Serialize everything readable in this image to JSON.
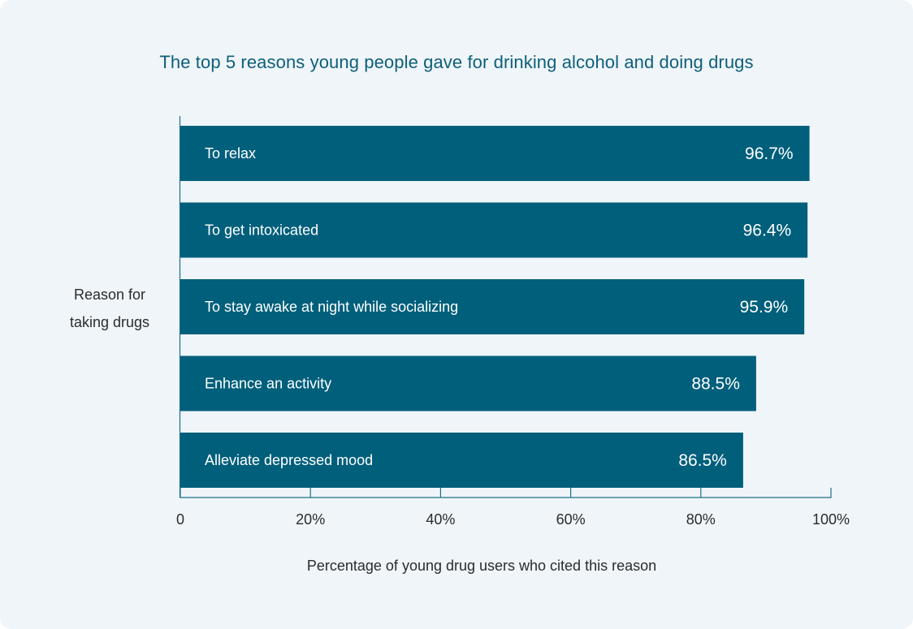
{
  "chart_data": {
    "type": "bar",
    "orientation": "horizontal",
    "title": "The top 5 reasons young people gave for drinking alcohol and doing drugs",
    "xlabel": "Percentage of young drug users who cited this reason",
    "ylabel_lines": [
      "Reason for",
      "taking drugs"
    ],
    "categories": [
      "To relax",
      "To get intoxicated",
      "To stay awake at night while socializing",
      "Enhance an activity",
      "Alleviate depressed mood"
    ],
    "values": [
      96.7,
      96.4,
      95.9,
      88.5,
      86.5
    ],
    "value_labels": [
      "96.7%",
      "96.4%",
      "95.9%",
      "88.5%",
      "86.5%"
    ],
    "xlim": [
      0,
      100
    ],
    "x_ticks": [
      0,
      20,
      40,
      60,
      80,
      100
    ],
    "x_tick_labels": [
      "0",
      "20%",
      "40%",
      "60%",
      "80%",
      "100%"
    ],
    "grid": false,
    "legend": "none",
    "colors": {
      "bar": "#005f7b",
      "title": "#0e5f7a",
      "axis": "#1e6f88",
      "background": "#eff5f9",
      "text": "#2b2b2b"
    }
  }
}
